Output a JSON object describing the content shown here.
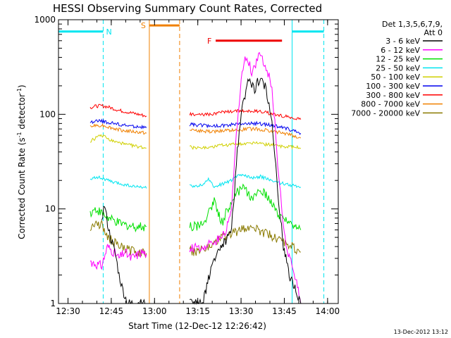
{
  "chart_data": {
    "type": "line",
    "title": "HESSI Observing Summary Count Rates, Corrected",
    "xlabel": "Start Time (12-Dec-12 12:26:42)",
    "ylabel_parts": {
      "main": "Corrected Count Rate (s",
      "exp": "-1",
      "mid": " detector",
      "exp2": "-1",
      "end": ")"
    },
    "timestamp": "13-Dec-2012 13:12",
    "x_units": "minutes after 12:26:42",
    "xlim": [
      0,
      97
    ],
    "ylim": [
      1,
      1000
    ],
    "yscale": "log",
    "x_ticks": [
      {
        "v": 3.3,
        "label": "12:30"
      },
      {
        "v": 18.3,
        "label": "12:45"
      },
      {
        "v": 33.3,
        "label": "13:00"
      },
      {
        "v": 48.3,
        "label": "13:15"
      },
      {
        "v": 63.3,
        "label": "13:30"
      },
      {
        "v": 78.3,
        "label": "13:45"
      },
      {
        "v": 93.3,
        "label": "14:00"
      }
    ],
    "y_ticks": [
      {
        "v": 1,
        "label": "1"
      },
      {
        "v": 10,
        "label": "10"
      },
      {
        "v": 100,
        "label": "100"
      },
      {
        "v": 1000,
        "label": "1000"
      }
    ],
    "legend": {
      "header": [
        "Det 1,3,5,6,7,9,",
        "Att 0"
      ],
      "placement": "right"
    },
    "flags": [
      {
        "label": "N",
        "color": "#00e5f0",
        "start": 15.5,
        "end": 81.0,
        "y": 750,
        "bar_left": [
          0,
          15.5
        ],
        "bar_right": [
          81.0,
          92.0
        ]
      },
      {
        "label": "S",
        "color": "#f08000",
        "start": 31.5,
        "end": 42.0,
        "y": 870,
        "bar": [
          31.5,
          42.0
        ]
      },
      {
        "label": "F",
        "color": "#ee0000",
        "start": 54.5,
        "end": 81.0,
        "y": 600,
        "bar": [
          54.5,
          77.5
        ]
      }
    ],
    "segments": [
      [
        11.0,
        30.5
      ],
      [
        45.5,
        84.0
      ]
    ],
    "series": [
      {
        "name": "3 - 6 keV",
        "color": "#000000",
        "x": [
          11,
          14,
          15,
          16,
          17,
          18,
          19,
          20,
          21,
          22,
          23,
          24,
          26,
          28,
          30.5,
          45.5,
          50,
          52,
          54,
          56,
          58,
          60,
          61,
          62,
          63,
          64,
          65,
          66,
          67,
          68,
          69,
          70,
          71,
          72,
          73,
          74,
          75,
          76,
          77,
          78,
          80,
          82,
          84
        ],
        "y": [
          null,
          null,
          8,
          11,
          7,
          5,
          4,
          3,
          2,
          1.5,
          1.2,
          1,
          1,
          1,
          1,
          1,
          1,
          1.8,
          3,
          4,
          4.5,
          6,
          15,
          40,
          80,
          130,
          180,
          230,
          200,
          180,
          220,
          240,
          210,
          190,
          120,
          80,
          40,
          15,
          8,
          4,
          2,
          1.5,
          1
        ]
      },
      {
        "name": "6 - 12 keV",
        "color": "#ff00ff",
        "x": [
          11,
          13,
          15,
          17,
          19,
          21,
          23,
          25,
          27,
          29,
          30.5,
          45.5,
          48,
          51,
          54,
          56,
          58,
          60,
          61,
          62,
          63,
          64,
          65,
          66,
          67,
          68,
          69,
          70,
          71,
          72,
          73,
          74,
          75,
          76,
          77,
          78,
          80,
          82,
          84
        ],
        "y": [
          2.8,
          2.6,
          2.5,
          4,
          3.5,
          3,
          3.5,
          3,
          3.2,
          3.5,
          3.3,
          3.8,
          4,
          4,
          4.5,
          5,
          6,
          10,
          30,
          80,
          180,
          320,
          400,
          350,
          280,
          300,
          380,
          420,
          360,
          300,
          250,
          180,
          80,
          30,
          15,
          6,
          3,
          2,
          1
        ]
      },
      {
        "name": "12 - 25 keV",
        "color": "#00e000",
        "x": [
          11,
          13,
          15,
          17,
          19,
          21,
          23,
          25,
          27,
          29,
          30.5,
          45.5,
          48,
          50,
          52,
          54,
          56,
          57,
          58,
          60,
          62,
          64,
          66,
          68,
          70,
          72,
          74,
          76,
          78,
          80,
          82,
          84
        ],
        "y": [
          9,
          10,
          9,
          8,
          7.5,
          7,
          6.8,
          6.6,
          6.5,
          6.5,
          6.5,
          6.5,
          6.5,
          7,
          9,
          12,
          8,
          7,
          9,
          12,
          15,
          17,
          14,
          13,
          16,
          14,
          11,
          9,
          8,
          7,
          6.5,
          6
        ]
      },
      {
        "name": "25 - 50 keV",
        "color": "#00e5f0",
        "x": [
          11,
          13,
          15,
          17,
          19,
          21,
          23,
          25,
          27,
          29,
          30.5,
          45.5,
          48,
          50,
          52,
          54,
          56,
          58,
          60,
          62,
          64,
          66,
          68,
          70,
          72,
          74,
          76,
          78,
          80,
          82,
          84
        ],
        "y": [
          20,
          22,
          21,
          20,
          19,
          18.5,
          18,
          17.5,
          17,
          17,
          16.5,
          18,
          17,
          18,
          21,
          17,
          18,
          19,
          20,
          22,
          23,
          22,
          21,
          22,
          21,
          20,
          19,
          18.5,
          18,
          17.5,
          17
        ]
      },
      {
        "name": "50 - 100 keV",
        "color": "#d0d000",
        "x": [
          11,
          13,
          15,
          17,
          19,
          21,
          23,
          25,
          27,
          29,
          30.5,
          45.5,
          48,
          51,
          54,
          57,
          60,
          63,
          66,
          69,
          72,
          75,
          78,
          81,
          84
        ],
        "y": [
          52,
          56,
          60,
          55,
          52,
          50,
          48,
          47,
          46,
          45,
          44,
          45,
          44,
          45,
          46,
          47,
          48,
          49,
          50,
          49,
          48,
          47,
          46,
          45,
          44
        ]
      },
      {
        "name": "100 - 300 keV",
        "color": "#0000ee",
        "x": [
          11,
          13,
          15,
          17,
          19,
          21,
          23,
          25,
          27,
          29,
          30.5,
          45.5,
          48,
          51,
          54,
          57,
          60,
          63,
          66,
          69,
          72,
          75,
          78,
          81,
          84
        ],
        "y": [
          82,
          84,
          85,
          82,
          80,
          78,
          76,
          75,
          74,
          73,
          72,
          78,
          77,
          76,
          75,
          76,
          78,
          80,
          81,
          80,
          78,
          75,
          72,
          68,
          63
        ]
      },
      {
        "name": "300 - 800 keV",
        "color": "#ff0000",
        "x": [
          11,
          13,
          15,
          17,
          19,
          21,
          23,
          25,
          27,
          29,
          30.5,
          45.5,
          48,
          51,
          54,
          57,
          60,
          63,
          66,
          69,
          72,
          75,
          78,
          81,
          84
        ],
        "y": [
          118,
          122,
          123,
          120,
          115,
          110,
          107,
          104,
          101,
          98,
          96,
          100,
          98,
          99,
          102,
          106,
          108,
          110,
          109,
          107,
          104,
          100,
          96,
          92,
          88
        ]
      },
      {
        "name": "800 - 7000 keV",
        "color": "#f08000",
        "x": [
          11,
          13,
          15,
          17,
          19,
          21,
          23,
          25,
          27,
          29,
          30.5,
          45.5,
          48,
          51,
          54,
          57,
          60,
          63,
          66,
          69,
          72,
          75,
          78,
          81,
          84
        ],
        "y": [
          74,
          76,
          77,
          74,
          71,
          69,
          67,
          66,
          65,
          64,
          63,
          68,
          67,
          66,
          66,
          67,
          68,
          69,
          70,
          70,
          68,
          66,
          63,
          60,
          56
        ]
      },
      {
        "name": "7000 - 20000 keV",
        "color": "#8a7a00",
        "x": [
          11,
          13,
          15,
          17,
          19,
          21,
          23,
          25,
          27,
          29,
          30.5,
          45.5,
          48,
          51,
          54,
          57,
          60,
          63,
          66,
          69,
          72,
          75,
          78,
          81,
          84
        ],
        "y": [
          6.5,
          7,
          6.8,
          5,
          4.5,
          4,
          3.8,
          3.6,
          3.5,
          3.5,
          3.4,
          3.6,
          3.5,
          3.8,
          4.5,
          5,
          5.5,
          6,
          6.5,
          6,
          5.5,
          5,
          4.5,
          4,
          3.5
        ]
      }
    ]
  }
}
